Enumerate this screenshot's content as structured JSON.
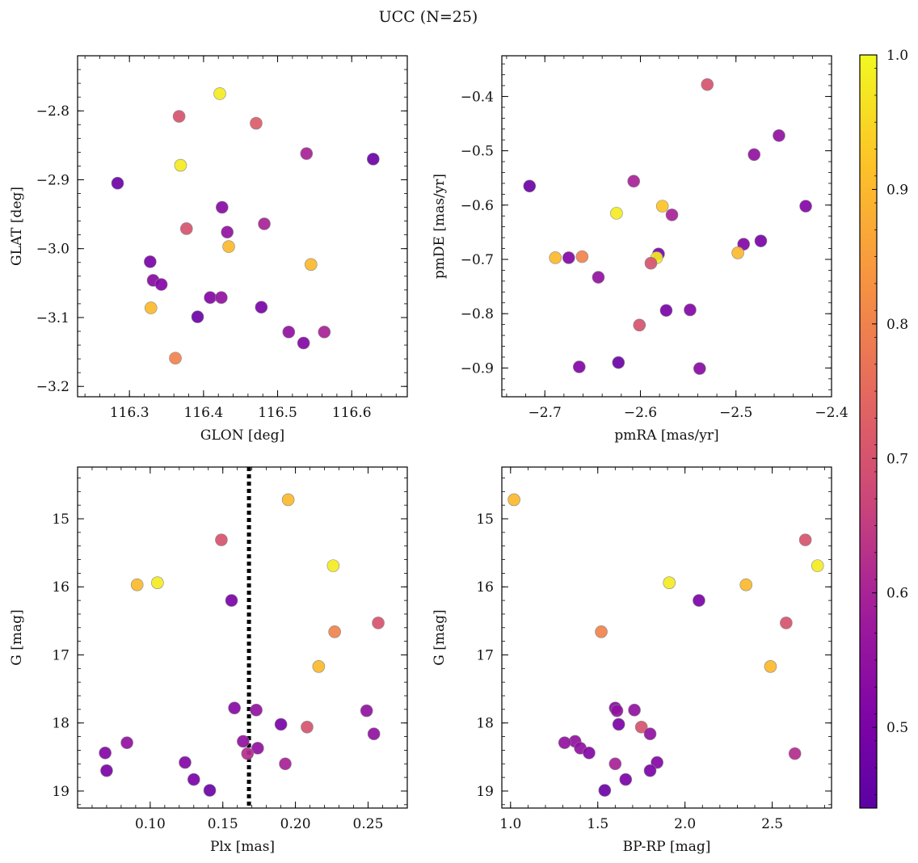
{
  "figure": {
    "title": "UCC (N=25)"
  },
  "colorbar": {
    "min": 0.44,
    "max": 1.0,
    "ticks": [
      "0.5",
      "0.6",
      "0.7",
      "0.8",
      "0.9",
      "1.0"
    ],
    "tick_values": [
      0.5,
      0.6,
      0.7,
      0.8,
      0.9,
      1.0
    ],
    "colormap": "plasma"
  },
  "chart_data": [
    {
      "type": "scatter",
      "xlabel": "GLON [deg]",
      "ylabel": "GLAT [deg]",
      "xlim": [
        116.23,
        116.675
      ],
      "ylim": [
        -3.215,
        -2.72
      ],
      "xticks": [
        116.3,
        116.4,
        116.5,
        116.6
      ],
      "xtick_labels": [
        "116.3",
        "116.4",
        "116.5",
        "116.6"
      ],
      "yticks": [
        -3.2,
        -3.1,
        -3.0,
        -2.9,
        -2.8
      ],
      "ytick_labels": [
        "−3.2",
        "−3.1",
        "−3.0",
        "−2.9",
        "−2.8"
      ],
      "points": [
        {
          "x": 116.422,
          "y": -2.775,
          "c": 0.98
        },
        {
          "x": 116.367,
          "y": -2.808,
          "c": 0.7
        },
        {
          "x": 116.471,
          "y": -2.818,
          "c": 0.72
        },
        {
          "x": 116.539,
          "y": -2.862,
          "c": 0.6
        },
        {
          "x": 116.629,
          "y": -2.87,
          "c": 0.47
        },
        {
          "x": 116.369,
          "y": -2.879,
          "c": 0.98
        },
        {
          "x": 116.284,
          "y": -2.905,
          "c": 0.47
        },
        {
          "x": 116.425,
          "y": -2.94,
          "c": 0.53
        },
        {
          "x": 116.482,
          "y": -2.964,
          "c": 0.6
        },
        {
          "x": 116.377,
          "y": -2.971,
          "c": 0.7
        },
        {
          "x": 116.432,
          "y": -2.976,
          "c": 0.55
        },
        {
          "x": 116.434,
          "y": -2.997,
          "c": 0.9
        },
        {
          "x": 116.328,
          "y": -3.019,
          "c": 0.5
        },
        {
          "x": 116.545,
          "y": -3.023,
          "c": 0.9
        },
        {
          "x": 116.332,
          "y": -3.046,
          "c": 0.53
        },
        {
          "x": 116.343,
          "y": -3.052,
          "c": 0.52
        },
        {
          "x": 116.409,
          "y": -3.071,
          "c": 0.52
        },
        {
          "x": 116.424,
          "y": -3.071,
          "c": 0.55
        },
        {
          "x": 116.478,
          "y": -3.085,
          "c": 0.5
        },
        {
          "x": 116.329,
          "y": -3.086,
          "c": 0.9
        },
        {
          "x": 116.392,
          "y": -3.099,
          "c": 0.47
        },
        {
          "x": 116.515,
          "y": -3.121,
          "c": 0.55
        },
        {
          "x": 116.563,
          "y": -3.121,
          "c": 0.6
        },
        {
          "x": 116.535,
          "y": -3.137,
          "c": 0.52
        },
        {
          "x": 116.362,
          "y": -3.159,
          "c": 0.8
        }
      ]
    },
    {
      "type": "scatter",
      "xlabel": "pmRA [mas/yr]",
      "ylabel": "pmDE [mas/yr]",
      "xlim": [
        -2.745,
        -2.4
      ],
      "ylim": [
        -0.953,
        -0.325
      ],
      "xticks": [
        -2.7,
        -2.6,
        -2.5,
        -2.4
      ],
      "xtick_labels": [
        "−2.7",
        "−2.6",
        "−2.5",
        "−2.4"
      ],
      "yticks": [
        -0.9,
        -0.8,
        -0.7,
        -0.6,
        -0.5,
        -0.4
      ],
      "ytick_labels": [
        "−0.9",
        "−0.8",
        "−0.7",
        "−0.6",
        "−0.5",
        "−0.4"
      ],
      "points": [
        {
          "x": -2.53,
          "y": -0.378,
          "c": 0.7
        },
        {
          "x": -2.455,
          "y": -0.472,
          "c": 0.55
        },
        {
          "x": -2.481,
          "y": -0.507,
          "c": 0.55
        },
        {
          "x": -2.607,
          "y": -0.556,
          "c": 0.6
        },
        {
          "x": -2.716,
          "y": -0.565,
          "c": 0.47
        },
        {
          "x": -2.577,
          "y": -0.602,
          "c": 0.92
        },
        {
          "x": -2.427,
          "y": -0.602,
          "c": 0.52
        },
        {
          "x": -2.625,
          "y": -0.615,
          "c": 0.98
        },
        {
          "x": -2.567,
          "y": -0.618,
          "c": 0.6
        },
        {
          "x": -2.474,
          "y": -0.666,
          "c": 0.5
        },
        {
          "x": -2.492,
          "y": -0.672,
          "c": 0.52
        },
        {
          "x": -2.498,
          "y": -0.688,
          "c": 0.9
        },
        {
          "x": -2.581,
          "y": -0.69,
          "c": 0.5
        },
        {
          "x": -2.661,
          "y": -0.695,
          "c": 0.8
        },
        {
          "x": -2.689,
          "y": -0.697,
          "c": 0.9
        },
        {
          "x": -2.675,
          "y": -0.697,
          "c": 0.52
        },
        {
          "x": -2.583,
          "y": -0.697,
          "c": 0.98
        },
        {
          "x": -2.589,
          "y": -0.707,
          "c": 0.7
        },
        {
          "x": -2.644,
          "y": -0.733,
          "c": 0.55
        },
        {
          "x": -2.548,
          "y": -0.793,
          "c": 0.52
        },
        {
          "x": -2.573,
          "y": -0.794,
          "c": 0.5
        },
        {
          "x": -2.601,
          "y": -0.821,
          "c": 0.7
        },
        {
          "x": -2.623,
          "y": -0.89,
          "c": 0.47
        },
        {
          "x": -2.664,
          "y": -0.898,
          "c": 0.52
        },
        {
          "x": -2.538,
          "y": -0.901,
          "c": 0.53
        }
      ]
    },
    {
      "type": "scatter",
      "xlabel": "Plx [mas]",
      "ylabel": "G [mag]",
      "xlim": [
        0.05,
        0.277
      ],
      "ylim": [
        19.25,
        14.24
      ],
      "inverted_y": true,
      "vline": {
        "x": 0.168,
        "style": "dotted",
        "color": "#000000"
      },
      "xticks": [
        0.1,
        0.15,
        0.2,
        0.25
      ],
      "xtick_labels": [
        "0.10",
        "0.15",
        "0.20",
        "0.25"
      ],
      "yticks": [
        15,
        16,
        17,
        18,
        19
      ],
      "ytick_labels": [
        "15",
        "16",
        "17",
        "18",
        "19"
      ],
      "points": [
        {
          "x": 0.195,
          "y": 14.72,
          "c": 0.9
        },
        {
          "x": 0.149,
          "y": 15.31,
          "c": 0.7
        },
        {
          "x": 0.226,
          "y": 15.69,
          "c": 0.98
        },
        {
          "x": 0.105,
          "y": 15.94,
          "c": 0.98
        },
        {
          "x": 0.091,
          "y": 15.97,
          "c": 0.9
        },
        {
          "x": 0.156,
          "y": 16.2,
          "c": 0.5
        },
        {
          "x": 0.257,
          "y": 16.53,
          "c": 0.7
        },
        {
          "x": 0.227,
          "y": 16.66,
          "c": 0.8
        },
        {
          "x": 0.216,
          "y": 17.17,
          "c": 0.9
        },
        {
          "x": 0.158,
          "y": 17.78,
          "c": 0.53
        },
        {
          "x": 0.173,
          "y": 17.81,
          "c": 0.55
        },
        {
          "x": 0.249,
          "y": 17.82,
          "c": 0.55
        },
        {
          "x": 0.19,
          "y": 18.02,
          "c": 0.5
        },
        {
          "x": 0.208,
          "y": 18.06,
          "c": 0.7
        },
        {
          "x": 0.254,
          "y": 18.16,
          "c": 0.55
        },
        {
          "x": 0.164,
          "y": 18.27,
          "c": 0.55
        },
        {
          "x": 0.084,
          "y": 18.29,
          "c": 0.55
        },
        {
          "x": 0.174,
          "y": 18.37,
          "c": 0.55
        },
        {
          "x": 0.069,
          "y": 18.44,
          "c": 0.52
        },
        {
          "x": 0.167,
          "y": 18.45,
          "c": 0.62
        },
        {
          "x": 0.124,
          "y": 18.58,
          "c": 0.52
        },
        {
          "x": 0.193,
          "y": 18.6,
          "c": 0.6
        },
        {
          "x": 0.07,
          "y": 18.7,
          "c": 0.5
        },
        {
          "x": 0.13,
          "y": 18.83,
          "c": 0.5
        },
        {
          "x": 0.141,
          "y": 18.99,
          "c": 0.47
        }
      ]
    },
    {
      "type": "scatter",
      "xlabel": "BP-RP [mag]",
      "ylabel": "G [mag]",
      "xlim": [
        0.95,
        2.84
      ],
      "ylim": [
        19.25,
        14.24
      ],
      "inverted_y": true,
      "xticks": [
        1.0,
        1.5,
        2.0,
        2.5
      ],
      "xtick_labels": [
        "1.0",
        "1.5",
        "2.0",
        "2.5"
      ],
      "yticks": [
        15,
        16,
        17,
        18,
        19
      ],
      "ytick_labels": [
        "15",
        "16",
        "17",
        "18",
        "19"
      ],
      "points": [
        {
          "x": 1.02,
          "y": 14.72,
          "c": 0.9
        },
        {
          "x": 2.69,
          "y": 15.31,
          "c": 0.7
        },
        {
          "x": 2.76,
          "y": 15.69,
          "c": 0.98
        },
        {
          "x": 1.91,
          "y": 15.94,
          "c": 0.98
        },
        {
          "x": 2.35,
          "y": 15.97,
          "c": 0.9
        },
        {
          "x": 2.08,
          "y": 16.2,
          "c": 0.5
        },
        {
          "x": 2.58,
          "y": 16.53,
          "c": 0.7
        },
        {
          "x": 1.52,
          "y": 16.66,
          "c": 0.8
        },
        {
          "x": 2.49,
          "y": 17.17,
          "c": 0.9
        },
        {
          "x": 1.6,
          "y": 17.78,
          "c": 0.53
        },
        {
          "x": 1.71,
          "y": 17.81,
          "c": 0.55
        },
        {
          "x": 1.61,
          "y": 17.82,
          "c": 0.55
        },
        {
          "x": 1.62,
          "y": 18.02,
          "c": 0.5
        },
        {
          "x": 1.75,
          "y": 18.06,
          "c": 0.7
        },
        {
          "x": 1.8,
          "y": 18.16,
          "c": 0.55
        },
        {
          "x": 1.37,
          "y": 18.27,
          "c": 0.55
        },
        {
          "x": 1.31,
          "y": 18.29,
          "c": 0.55
        },
        {
          "x": 1.4,
          "y": 18.37,
          "c": 0.55
        },
        {
          "x": 1.45,
          "y": 18.44,
          "c": 0.52
        },
        {
          "x": 2.63,
          "y": 18.45,
          "c": 0.62
        },
        {
          "x": 1.84,
          "y": 18.58,
          "c": 0.52
        },
        {
          "x": 1.6,
          "y": 18.6,
          "c": 0.6
        },
        {
          "x": 1.8,
          "y": 18.7,
          "c": 0.5
        },
        {
          "x": 1.66,
          "y": 18.83,
          "c": 0.5
        },
        {
          "x": 1.54,
          "y": 18.99,
          "c": 0.47
        }
      ]
    }
  ]
}
